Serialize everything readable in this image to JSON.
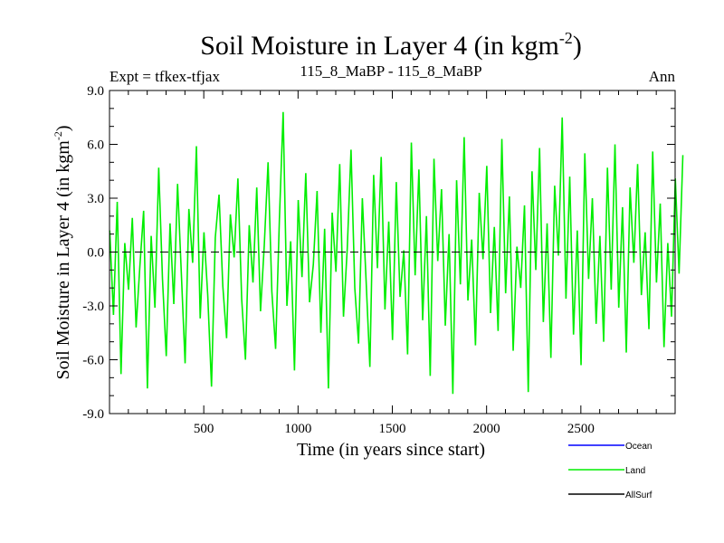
{
  "chart_data": {
    "type": "line",
    "title": "Soil Moisture in Layer 4 (in kgm",
    "title_superscript": "-2",
    "title_close": ")",
    "subtitle_left": "Expt = tfkex-tfjax",
    "subtitle_center": "115_8_MaBP - 115_8_MaBP",
    "subtitle_right": "Ann",
    "xlabel": "Time (in years since start)",
    "ylabel": "Soil Moisture in Layer 4 (in kgm",
    "ylabel_superscript": "-2",
    "ylabel_close": ")",
    "xlim": [
      0,
      3000
    ],
    "ylim": [
      -9.0,
      9.0
    ],
    "x_ticks": [
      500,
      1000,
      1500,
      2000,
      2500
    ],
    "x_tick_labels": [
      "500",
      "1000",
      "1500",
      "2000",
      "2500"
    ],
    "y_ticks": [
      -9.0,
      -6.0,
      -3.0,
      0.0,
      3.0,
      6.0,
      9.0
    ],
    "y_tick_labels": [
      "-9.0",
      "-6.0",
      "-3.0",
      "0.0",
      "3.0",
      "6.0",
      "9.0"
    ],
    "zero_line": true,
    "grid": false,
    "legend_placement": "bottom-right",
    "series": [
      {
        "name": "Ocean",
        "color": "#0000ff",
        "values": []
      },
      {
        "name": "Land",
        "color": "#00ee00",
        "x_start": 1,
        "x_step": 20,
        "values": [
          1.2,
          -3.5,
          2.8,
          -6.8,
          0.5,
          -2.1,
          1.9,
          -4.2,
          -0.8,
          2.3,
          -7.6,
          0.9,
          -3.1,
          4.7,
          -1.5,
          -5.8,
          1.6,
          -2.9,
          3.8,
          -1.2,
          -6.2,
          2.4,
          -0.6,
          5.9,
          -3.7,
          1.1,
          -2.4,
          -7.5,
          0.8,
          3.2,
          -1.9,
          -4.8,
          2.1,
          -0.3,
          4.1,
          -2.6,
          -6.0,
          1.5,
          -1.7,
          3.6,
          -3.3,
          0.4,
          5.0,
          -2.2,
          -5.4,
          1.8,
          7.8,
          -3.0,
          0.6,
          -6.6,
          2.9,
          -1.4,
          4.4,
          -2.8,
          -0.7,
          3.4,
          -4.5,
          1.3,
          -7.6,
          2.2,
          -1.1,
          4.9,
          -3.6,
          0.2,
          5.7,
          -2.0,
          -5.1,
          3.0,
          -1.6,
          -6.4,
          4.3,
          -0.9,
          5.3,
          -3.2,
          1.7,
          -4.9,
          3.9,
          -2.5,
          0.1,
          -5.7,
          6.1,
          -1.3,
          4.6,
          -3.8,
          2.0,
          -6.9,
          5.2,
          -0.5,
          3.5,
          -4.1,
          1.0,
          -7.9,
          4.0,
          -1.8,
          6.4,
          -2.7,
          0.7,
          -5.2,
          3.3,
          -0.4,
          4.8,
          -3.4,
          1.4,
          -4.4,
          6.3,
          -2.3,
          3.1,
          -5.5,
          0.3,
          -2.0,
          2.6,
          -7.8,
          4.5,
          -1.0,
          5.8,
          -3.9,
          1.6,
          -5.9,
          3.7,
          -0.2,
          7.5,
          -2.6,
          4.2,
          -4.6,
          1.2,
          -6.3,
          5.5,
          -1.5,
          3.0,
          -4.0,
          0.9,
          -5.0,
          4.7,
          -2.1,
          6.0,
          -3.1,
          2.5,
          -5.6,
          3.6,
          -0.6,
          4.9,
          -2.4,
          1.1,
          -4.3,
          5.6,
          -1.7,
          2.7,
          -5.3,
          0.5,
          -3.6,
          4.1,
          -1.2,
          5.4
        ]
      },
      {
        "name": "AllSurf",
        "color": "#000000",
        "values": []
      }
    ]
  }
}
